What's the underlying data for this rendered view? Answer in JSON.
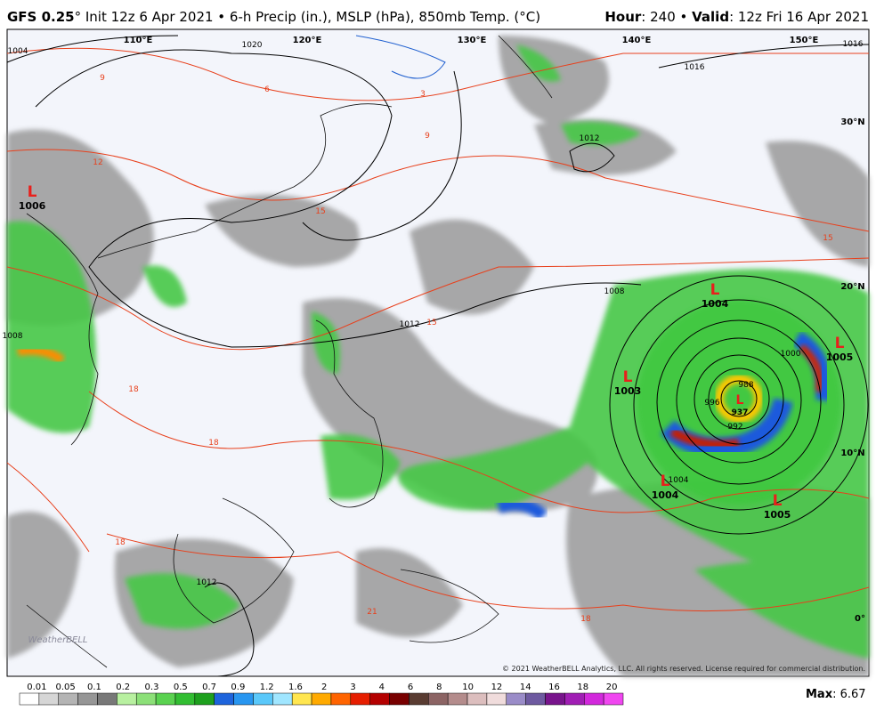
{
  "header": {
    "model": "GFS 0.25",
    "description": "° Init 12z 6 Apr 2021 • 6-h Precip (in.), MSLP (hPa), 850mb Temp. (°C)",
    "hour_label": "Hour",
    "hour_value": ": 240 • ",
    "valid_label": "Valid",
    "valid_value": ": 12z Fri 16 Apr 2021"
  },
  "map": {
    "longitudes": [
      "110°E",
      "120°E",
      "130°E",
      "140°E",
      "150°E"
    ],
    "latitudes": [
      "30°N",
      "20°N",
      "10°N",
      "0°"
    ],
    "lows": [
      {
        "symbol": "L",
        "pressure": "1006"
      },
      {
        "symbol": "L",
        "pressure": "1004"
      },
      {
        "symbol": "L",
        "pressure": "1005"
      },
      {
        "symbol": "L",
        "pressure": "1003"
      },
      {
        "symbol": "L",
        "pressure": "1004"
      },
      {
        "symbol": "L",
        "pressure": "1005"
      },
      {
        "symbol": "L",
        "pressure": "937"
      }
    ],
    "isobar_labels": [
      "1020",
      "1016",
      "1016",
      "1012",
      "1008",
      "1012",
      "1004",
      "1012",
      "1000",
      "996",
      "992",
      "988",
      "1004",
      "1008"
    ],
    "temperature_labels": [
      "9",
      "6",
      "3",
      "12",
      "9",
      "15",
      "15",
      "18",
      "18",
      "18",
      "21",
      "18",
      "15"
    ],
    "copyright": "© 2021 WeatherBELL Analytics, LLC. All rights reserved. License required for commercial distribution.",
    "logo": "WeatherBELL"
  },
  "legend": {
    "labels": [
      "0.01",
      "0.05",
      "0.1",
      "0.2",
      "0.3",
      "0.5",
      "0.7",
      "0.9",
      "1.2",
      "1.6",
      "2",
      "3",
      "4",
      "6",
      "8",
      "10",
      "12",
      "14",
      "16",
      "18",
      "20"
    ],
    "colors": [
      "#ffffff",
      "#d6d6d6",
      "#b4b4b4",
      "#969696",
      "#787878",
      "#b8f0a0",
      "#8ce078",
      "#5ad250",
      "#32be32",
      "#1ea01e",
      "#1e64dc",
      "#2896f0",
      "#5ac8fa",
      "#a0e6ff",
      "#ffe650",
      "#ffaa00",
      "#ff6400",
      "#e61e00",
      "#b40000",
      "#780000",
      "#5a3c32",
      "#8c6464",
      "#b48c8c",
      "#dcbebe",
      "#f0dcdc",
      "#9a8cc8",
      "#6e5aa0",
      "#78148c",
      "#a01eb4",
      "#d228dc",
      "#f046f0"
    ],
    "max_label": "Max",
    "max_value": ": 6.67"
  }
}
